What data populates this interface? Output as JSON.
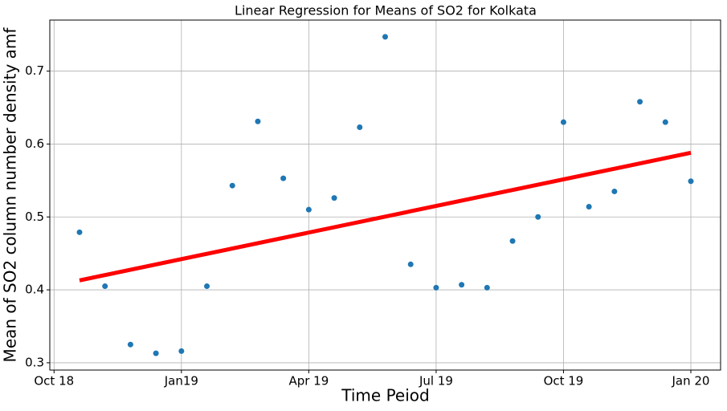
{
  "chart_data": {
    "type": "scatter",
    "title": "Linear Regression for Means of SO2 for Kolkata",
    "xlabel": "Time Peiod",
    "ylabel": "Mean of SO2 column number density amf",
    "xlim": [
      -0.1,
      15.7
    ],
    "xticks": [
      {
        "value": 0,
        "label": "Oct 18"
      },
      {
        "value": 3,
        "label": "Jan19"
      },
      {
        "value": 6,
        "label": "Apr 19"
      },
      {
        "value": 9,
        "label": "Jul 19"
      },
      {
        "value": 12,
        "label": "Oct 19"
      },
      {
        "value": 15,
        "label": "Jan 20"
      }
    ],
    "ylim": [
      0.29,
      0.77
    ],
    "yticks": [
      0.3,
      0.4,
      0.5,
      0.6,
      0.7
    ],
    "grid": true,
    "series": [
      {
        "type": "scatter",
        "color": "#1f77b4",
        "x": [
          0.6,
          1.2,
          1.8,
          2.4,
          3.0,
          3.6,
          4.2,
          4.8,
          5.4,
          6.0,
          6.6,
          7.2,
          7.8,
          8.4,
          9.0,
          9.6,
          10.2,
          10.8,
          11.4,
          12.0,
          12.6,
          13.2,
          13.8,
          14.4,
          15.0
        ],
        "values": [
          0.479,
          0.405,
          0.325,
          0.313,
          0.316,
          0.405,
          0.543,
          0.631,
          0.553,
          0.51,
          0.526,
          0.623,
          0.747,
          0.435,
          0.403,
          0.407,
          0.403,
          0.467,
          0.5,
          0.63,
          0.514,
          0.535,
          0.658,
          0.63,
          0.549
        ]
      },
      {
        "type": "line",
        "color": "#ff0000",
        "x": [
          0.6,
          15.0
        ],
        "values": [
          0.413,
          0.588
        ]
      }
    ]
  }
}
